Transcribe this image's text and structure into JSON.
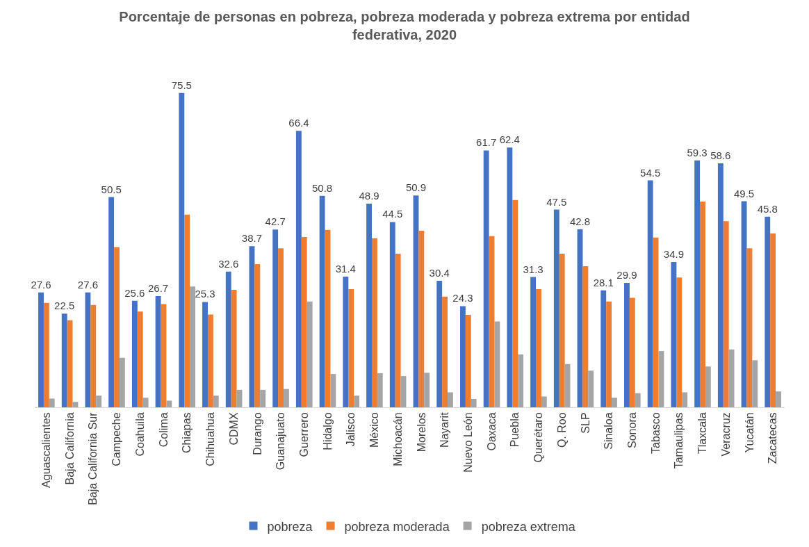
{
  "chart_data": {
    "type": "bar",
    "title": "Porcentaje de personas en pobreza, pobreza moderada y pobreza extrema por entidad federativa, 2020",
    "categories": [
      "Aguascalientes",
      "Baja California",
      "Baja California Sur",
      "Campeche",
      "Coahuila",
      "Colima",
      "Chiapas",
      "Chihuahua",
      "CDMX",
      "Durango",
      "Guanajuato",
      "Guerrero",
      "Hidalgo",
      "Jalisco",
      "México",
      "Michoacán",
      "Morelos",
      "Nayarit",
      "Nuevo León",
      "Oaxaca",
      "Puebla",
      "Querétaro",
      "Q. Roo",
      "SLP",
      "Sinaloa",
      "Sonora",
      "Tabasco",
      "Tamaulipas",
      "Tlaxcala",
      "Veracruz",
      "Yucatán",
      "Zacatecas"
    ],
    "series": [
      {
        "name": "pobreza",
        "color": "#4472c4",
        "values": [
          27.6,
          22.5,
          27.6,
          50.5,
          25.6,
          26.7,
          75.5,
          25.3,
          32.6,
          38.7,
          42.7,
          66.4,
          50.8,
          31.4,
          48.9,
          44.5,
          50.9,
          30.4,
          24.3,
          61.7,
          62.4,
          31.3,
          47.5,
          42.8,
          28.1,
          29.9,
          54.5,
          34.9,
          59.3,
          58.6,
          49.5,
          45.8
        ],
        "value_labels": [
          "27.6",
          "22.5",
          "27.6",
          "50.5",
          "25.6",
          "26.7",
          "75.5",
          "25.3",
          "32.6",
          "38.7",
          "42.7",
          "66.4",
          "50.8",
          "31.4",
          "48.9",
          "44.5",
          "50.9",
          "30.4",
          "24.3",
          "61.7",
          "62.4",
          "31.3",
          "47.5",
          "42.8",
          "28.1",
          "29.9",
          "54.5",
          "34.9",
          "59.3",
          "58.6",
          "49.5",
          "45.8"
        ]
      },
      {
        "name": "pobreza moderada",
        "color": "#ed7d31",
        "values": [
          25.1,
          20.9,
          24.6,
          38.5,
          23.0,
          24.8,
          46.3,
          22.3,
          28.2,
          34.4,
          38.2,
          40.9,
          42.6,
          28.4,
          40.6,
          36.9,
          42.4,
          26.6,
          22.2,
          41.1,
          49.8,
          28.4,
          36.9,
          33.9,
          25.4,
          26.3,
          40.8,
          31.2,
          49.4,
          44.7,
          38.2,
          41.8
        ]
      },
      {
        "name": "pobreza extrema",
        "color": "#a5a5a5",
        "values": [
          2.1,
          1.3,
          2.8,
          11.9,
          2.3,
          1.6,
          29.0,
          2.8,
          4.2,
          4.2,
          4.4,
          25.4,
          8.0,
          2.8,
          8.2,
          7.5,
          8.3,
          3.6,
          2.0,
          20.6,
          12.7,
          2.6,
          10.4,
          8.8,
          2.3,
          3.4,
          13.5,
          3.6,
          9.8,
          13.9,
          11.3,
          3.8
        ]
      }
    ],
    "tick_labels": "x",
    "legend": "bottom"
  }
}
